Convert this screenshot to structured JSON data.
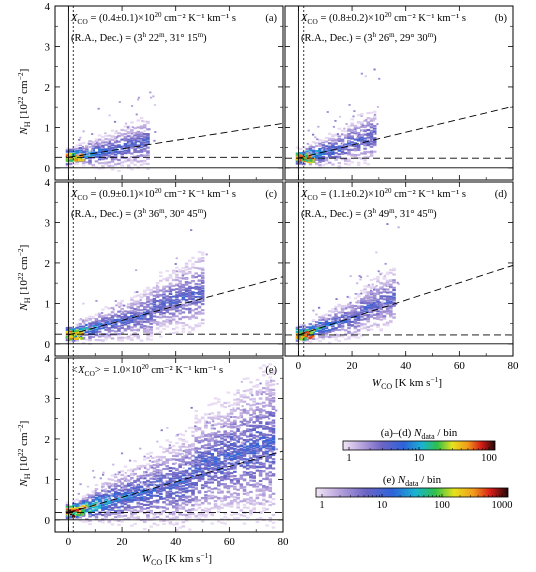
{
  "chart_data": {
    "type": "heatmap",
    "x_axis": {
      "min": -5,
      "max": 80,
      "ticks": [
        0,
        20,
        40,
        60,
        80
      ],
      "label_base": "W",
      "label_sub": "CO",
      "label_unit": "[K km s",
      "label_exp": "−1",
      "label_close": "]"
    },
    "y_axis": {
      "min": -0.3,
      "max": 4,
      "ticks": [
        0,
        1,
        2,
        3,
        4
      ],
      "label_base": "N",
      "label_sub": "H",
      "label_unit": "[10",
      "label_exp1": "22",
      "label_mid": " cm",
      "label_exp2": "−2",
      "label_close": "]"
    },
    "panels": [
      {
        "letter": "(a)",
        "xco_text": "X",
        "xco_sub": "CO",
        "xco_value": " = (0.4±0.1)×10",
        "xco_exp": "20",
        "xco_units": " cm⁻² K⁻¹ km⁻¹ s",
        "radec_prefix": "(R.A., Dec.) = (3",
        "radec_h": "h",
        "radec_m1": " 22",
        "radec_mu1": "m",
        "radec_dec": ", 31° 15",
        "radec_mu2": "m",
        "radec_close": ")",
        "slope": 0.0105,
        "intercept": 0.26,
        "baseline": 0.26,
        "vline_w": 1.8,
        "max_w": 32
      },
      {
        "letter": "(b)",
        "xco_text": "X",
        "xco_sub": "CO",
        "xco_value": " = (0.8±0.2)×10",
        "xco_exp": "20",
        "xco_units": " cm⁻² K⁻¹ km⁻¹ s",
        "radec_prefix": "(R.A., Dec.) = (3",
        "radec_h": "h",
        "radec_m1": " 26",
        "radec_mu1": "m",
        "radec_dec": ", 29° 30",
        "radec_mu2": "m",
        "radec_close": ")",
        "slope": 0.016,
        "intercept": 0.24,
        "baseline": 0.24,
        "vline_w": 2.0,
        "max_w": 30
      },
      {
        "letter": "(c)",
        "xco_text": "X",
        "xco_sub": "CO",
        "xco_value": " = (0.9±0.1)×10",
        "xco_exp": "20",
        "xco_units": " cm⁻² K⁻¹ km⁻¹ s",
        "radec_prefix": "(R.A., Dec.) = (3",
        "radec_h": "h",
        "radec_m1": " 36",
        "radec_mu1": "m",
        "radec_dec": ", 30° 45",
        "radec_mu2": "m",
        "radec_close": ")",
        "slope": 0.018,
        "intercept": 0.22,
        "baseline": 0.24,
        "vline_w": 1.8,
        "max_w": 52
      },
      {
        "letter": "(d)",
        "xco_text": "X",
        "xco_sub": "CO",
        "xco_value": " = (1.1±0.2)×10",
        "xco_exp": "20",
        "xco_units": " cm⁻² K⁻¹ km⁻¹ s",
        "radec_prefix": "(R.A., Dec.) = (3",
        "radec_h": "h",
        "radec_m1": " 49",
        "radec_mu1": "m",
        "radec_dec": ", 31° 45",
        "radec_mu2": "m",
        "radec_close": ")",
        "slope": 0.0215,
        "intercept": 0.22,
        "baseline": 0.22,
        "vline_w": 2.0,
        "max_w": 38
      },
      {
        "letter": "(e)",
        "xco_text": "<X",
        "xco_sub": "CO",
        "xco_value": "> = 1.0×10",
        "xco_exp": "20",
        "xco_units": " cm⁻² K⁻¹ km⁻¹ s",
        "slope": 0.019,
        "intercept": 0.18,
        "baseline": 0.18,
        "vline_w": 1.8,
        "max_w": 78
      }
    ],
    "colorbars": [
      {
        "label_prefix": "(a)–(d) ",
        "label_n": "N",
        "label_sub": "data",
        "label_suffix": " / bin",
        "ticks": [
          "1",
          "10",
          "100"
        ],
        "max_decades": 2
      },
      {
        "label_prefix": "(e) ",
        "label_n": "N",
        "label_sub": "data",
        "label_suffix": " / bin",
        "ticks": [
          "1",
          "10",
          "100",
          "1000"
        ],
        "max_decades": 3
      }
    ],
    "grid": false
  }
}
